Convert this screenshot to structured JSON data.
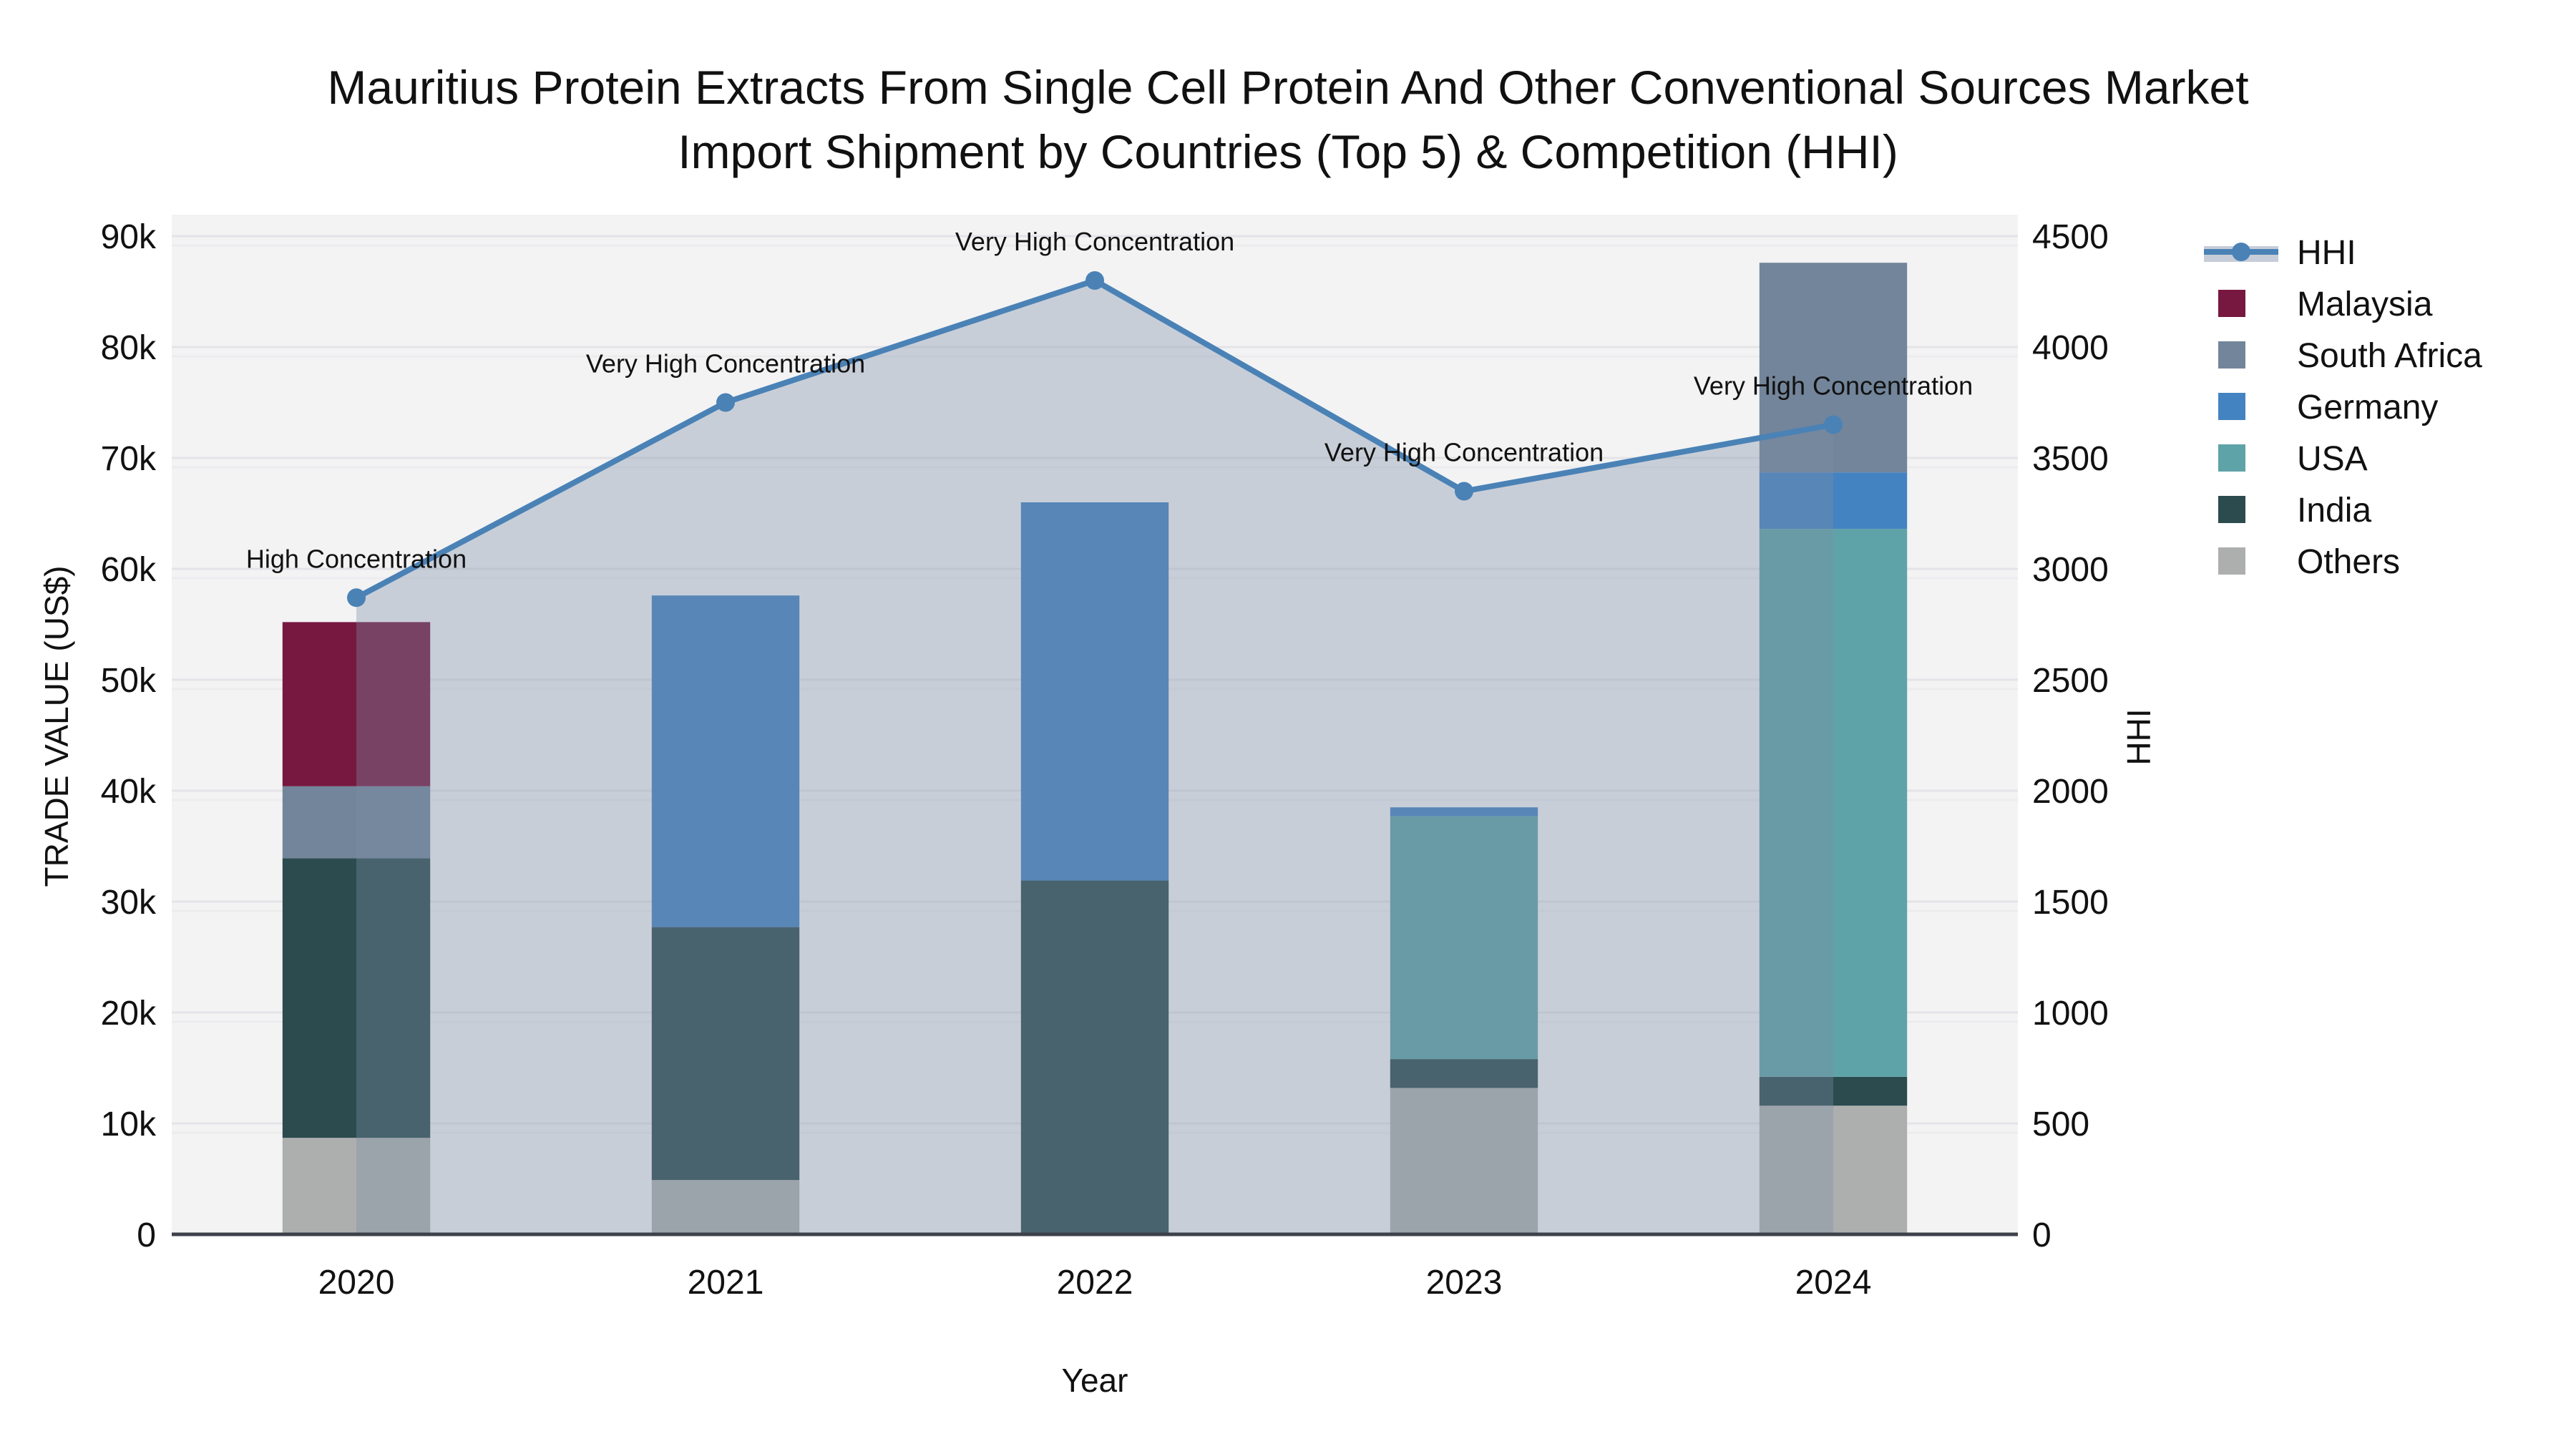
{
  "title": {
    "line1": "Mauritius Protein Extracts From Single Cell Protein And Other Conventional Sources Market",
    "line2": "Import Shipment by Countries (Top 5) & Competition (HHI)"
  },
  "chart_data": {
    "type": "bar+line",
    "categories": [
      "2020",
      "2021",
      "2022",
      "2023",
      "2024"
    ],
    "xlabel": "Year",
    "ylabel_left": "TRADE VALUE (US$)",
    "ylabel_right": "HHI",
    "ylim_left": [
      0,
      90000
    ],
    "ylim_right": [
      0,
      4500
    ],
    "left_ticks": [
      "0",
      "10k",
      "20k",
      "30k",
      "40k",
      "50k",
      "60k",
      "70k",
      "80k",
      "90k"
    ],
    "right_ticks": [
      "0",
      "500",
      "1000",
      "1500",
      "2000",
      "2500",
      "3000",
      "3500",
      "4000",
      "4500"
    ],
    "grid": true,
    "legend_position": "right",
    "bar_stack_order_note": "listed bottom-to-top",
    "bar_series": [
      {
        "name": "Others",
        "color": "#adafae",
        "values": [
          8700,
          4900,
          0,
          13200,
          11600
        ]
      },
      {
        "name": "India",
        "color": "#2b4b4e",
        "values": [
          25200,
          22800,
          31900,
          2600,
          2600
        ]
      },
      {
        "name": "USA",
        "color": "#5ea3a7",
        "values": [
          0,
          0,
          0,
          21900,
          49400
        ]
      },
      {
        "name": "Germany",
        "color": "#4483c1",
        "values": [
          0,
          29900,
          34100,
          800,
          5100
        ]
      },
      {
        "name": "South Africa",
        "color": "#73859a",
        "values": [
          6500,
          0,
          0,
          0,
          18900
        ]
      },
      {
        "name": "Malaysia",
        "color": "#76183f",
        "values": [
          14800,
          0,
          0,
          0,
          0
        ]
      }
    ],
    "bar_totals": [
      55200,
      57600,
      66000,
      38500,
      87600
    ],
    "line_series": {
      "name": "HHI",
      "color": "#4a82b6",
      "area_fill": "rgba(125,140,165,0.36)",
      "values": [
        2870,
        3750,
        4300,
        3350,
        3650
      ]
    },
    "annotations": [
      "High Concentration",
      "Very High Concentration",
      "Very High Concentration",
      "Very High Concentration",
      "Very High Concentration"
    ],
    "legend": [
      {
        "name": "HHI",
        "type": "line",
        "color": "#4a82b6",
        "band_color": "#c6cdd8"
      },
      {
        "name": "Malaysia",
        "type": "bar",
        "color": "#76183f"
      },
      {
        "name": "South Africa",
        "type": "bar",
        "color": "#73859a"
      },
      {
        "name": "Germany",
        "type": "bar",
        "color": "#4483c1"
      },
      {
        "name": "USA",
        "type": "bar",
        "color": "#5ea3a7"
      },
      {
        "name": "India",
        "type": "bar",
        "color": "#2b4b4e"
      },
      {
        "name": "Others",
        "type": "bar",
        "color": "#adafae"
      }
    ],
    "colors": {
      "plot_bg": "#f3f3f4",
      "gridline": "#e4e4e8",
      "gridline_echo": "#ececef",
      "axis_line": "#3d424a",
      "text": "#111111"
    }
  }
}
